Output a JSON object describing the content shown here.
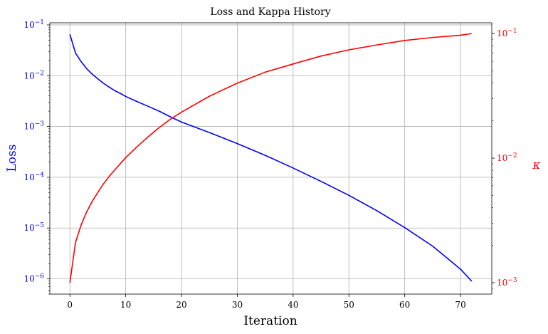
{
  "chart_data": {
    "type": "line",
    "title": "Loss and Kappa History",
    "xlabel": "Iteration",
    "ylabel_left": "Loss",
    "ylabel_right": "κ",
    "xlim": [
      -3.6,
      75.6
    ],
    "x_ticks": [
      0,
      10,
      20,
      30,
      40,
      50,
      60,
      70
    ],
    "left_axis": {
      "scale": "log",
      "ylim": [
        5e-07,
        0.11
      ],
      "color": "#0000ff",
      "ticks": [
        {
          "value": 1e-06,
          "label": "10",
          "exp": "−6"
        },
        {
          "value": 1e-05,
          "label": "10",
          "exp": "−5"
        },
        {
          "value": 0.0001,
          "label": "10",
          "exp": "−4"
        },
        {
          "value": 0.001,
          "label": "10",
          "exp": "−3"
        },
        {
          "value": 0.01,
          "label": "10",
          "exp": "−2"
        },
        {
          "value": 0.1,
          "label": "10",
          "exp": "−1"
        }
      ]
    },
    "right_axis": {
      "scale": "log",
      "ylim": [
        0.00081,
        0.122
      ],
      "color": "#ff0000",
      "ticks": [
        {
          "value": 0.001,
          "label": "10",
          "exp": "−3"
        },
        {
          "value": 0.01,
          "label": "10",
          "exp": "−2"
        },
        {
          "value": 0.1,
          "label": "10",
          "exp": "−1"
        }
      ]
    },
    "grid": true,
    "series": [
      {
        "axis": "left",
        "color": "#0000ff",
        "points": [
          [
            0,
            0.065
          ],
          [
            1,
            0.028
          ],
          [
            2,
            0.019
          ],
          [
            3,
            0.0138
          ],
          [
            4,
            0.0107
          ],
          [
            5,
            0.0087
          ],
          [
            6,
            0.0071
          ],
          [
            7,
            0.006
          ],
          [
            8,
            0.0051
          ],
          [
            9,
            0.0045
          ],
          [
            10,
            0.0039
          ],
          [
            12,
            0.0031
          ],
          [
            14,
            0.0025
          ],
          [
            16,
            0.002
          ],
          [
            18,
            0.00155
          ],
          [
            20,
            0.00122
          ],
          [
            25,
            0.00076
          ],
          [
            30,
            0.00046
          ],
          [
            35,
            0.00027
          ],
          [
            40,
            0.000152
          ],
          [
            45,
            8.3e-05
          ],
          [
            50,
            4.4e-05
          ],
          [
            55,
            2.2e-05
          ],
          [
            60,
            1.02e-05
          ],
          [
            65,
            4.4e-06
          ],
          [
            70,
            1.55e-06
          ],
          [
            72,
            9e-07
          ]
        ]
      },
      {
        "axis": "right",
        "color": "#ff0000",
        "points": [
          [
            0,
            0.001
          ],
          [
            1,
            0.0021
          ],
          [
            2,
            0.0029
          ],
          [
            3,
            0.0037
          ],
          [
            4,
            0.0045
          ],
          [
            5,
            0.0053
          ],
          [
            6,
            0.0062
          ],
          [
            7,
            0.0071
          ],
          [
            8,
            0.008
          ],
          [
            9,
            0.009
          ],
          [
            10,
            0.0101
          ],
          [
            12,
            0.0123
          ],
          [
            14,
            0.0148
          ],
          [
            16,
            0.0176
          ],
          [
            18,
            0.0205
          ],
          [
            20,
            0.0234
          ],
          [
            25,
            0.0314
          ],
          [
            30,
            0.04
          ],
          [
            35,
            0.049
          ],
          [
            40,
            0.057
          ],
          [
            45,
            0.066
          ],
          [
            50,
            0.074
          ],
          [
            55,
            0.081
          ],
          [
            60,
            0.088
          ],
          [
            65,
            0.093
          ],
          [
            70,
            0.097
          ],
          [
            72,
            0.1
          ]
        ]
      }
    ]
  }
}
